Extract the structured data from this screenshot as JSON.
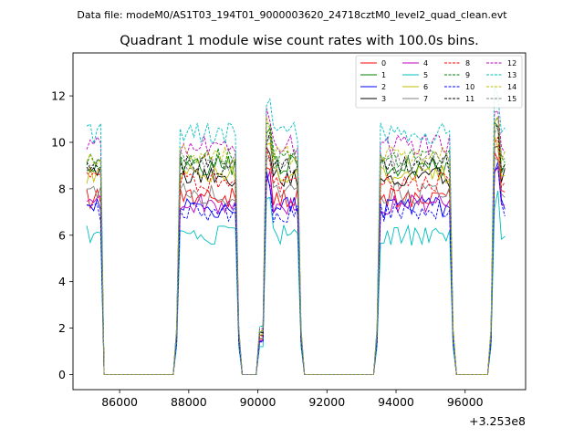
{
  "chart_data": {
    "type": "line",
    "suptitle": "Data file: modeM0/AS1T03_194T01_9000003620_24718cztM0_level2_quad_clean.evt",
    "title": "Quadrant 1 module wise count rates with 100.0s bins.",
    "xlabel": "",
    "ylabel": "",
    "x_offset_label": "+3.253e8",
    "xlim": [
      84650,
      97750
    ],
    "ylim": [
      -0.65,
      13.85
    ],
    "xticks": [
      86000,
      88000,
      90000,
      92000,
      94000,
      96000
    ],
    "xtick_labels": [
      "86000",
      "88000",
      "90000",
      "92000",
      "94000",
      "96000"
    ],
    "yticks": [
      0,
      2,
      4,
      6,
      8,
      10,
      12
    ],
    "ytick_labels": [
      "0",
      "2",
      "4",
      "6",
      "8",
      "10",
      "12"
    ],
    "legend_position": "top-right",
    "bin_width_s": 100,
    "active_intervals": [
      [
        85050,
        85450
      ],
      [
        87750,
        89350
      ],
      [
        90250,
        91150
      ],
      [
        93550,
        95550
      ],
      [
        96850,
        97150
      ]
    ],
    "zero_intervals": [
      [
        85550,
        87550
      ],
      [
        89550,
        89950
      ],
      [
        91350,
        93350
      ],
      [
        95750,
        96650
      ]
    ],
    "series": [
      {
        "name": "0",
        "color": "#ff0000",
        "dash": "solid",
        "level": 7.6
      },
      {
        "name": "1",
        "color": "#008000",
        "dash": "solid",
        "level": 9.0
      },
      {
        "name": "2",
        "color": "#0000ff",
        "dash": "solid",
        "level": 7.2
      },
      {
        "name": "3",
        "color": "#000000",
        "dash": "solid",
        "level": 8.5
      },
      {
        "name": "4",
        "color": "#bf00bf",
        "dash": "solid",
        "level": 7.3
      },
      {
        "name": "5",
        "color": "#00bfbf",
        "dash": "solid",
        "level": 6.0
      },
      {
        "name": "6",
        "color": "#bfbf00",
        "dash": "solid",
        "level": 8.6
      },
      {
        "name": "7",
        "color": "#808080",
        "dash": "solid",
        "level": 7.8
      },
      {
        "name": "8",
        "color": "#ff0000",
        "dash": "dashed",
        "level": 8.3
      },
      {
        "name": "9",
        "color": "#008000",
        "dash": "dashed",
        "level": 9.3
      },
      {
        "name": "10",
        "color": "#0000ff",
        "dash": "dashed",
        "level": 7.0
      },
      {
        "name": "11",
        "color": "#000000",
        "dash": "dashed",
        "level": 9.0
      },
      {
        "name": "12",
        "color": "#bf00bf",
        "dash": "dashed",
        "level": 9.9
      },
      {
        "name": "13",
        "color": "#00bfbf",
        "dash": "dashed",
        "level": 10.4
      },
      {
        "name": "14",
        "color": "#bfbf00",
        "dash": "dashed",
        "level": 9.5
      },
      {
        "name": "15",
        "color": "#808080",
        "dash": "dashed",
        "level": 9.2
      }
    ]
  }
}
